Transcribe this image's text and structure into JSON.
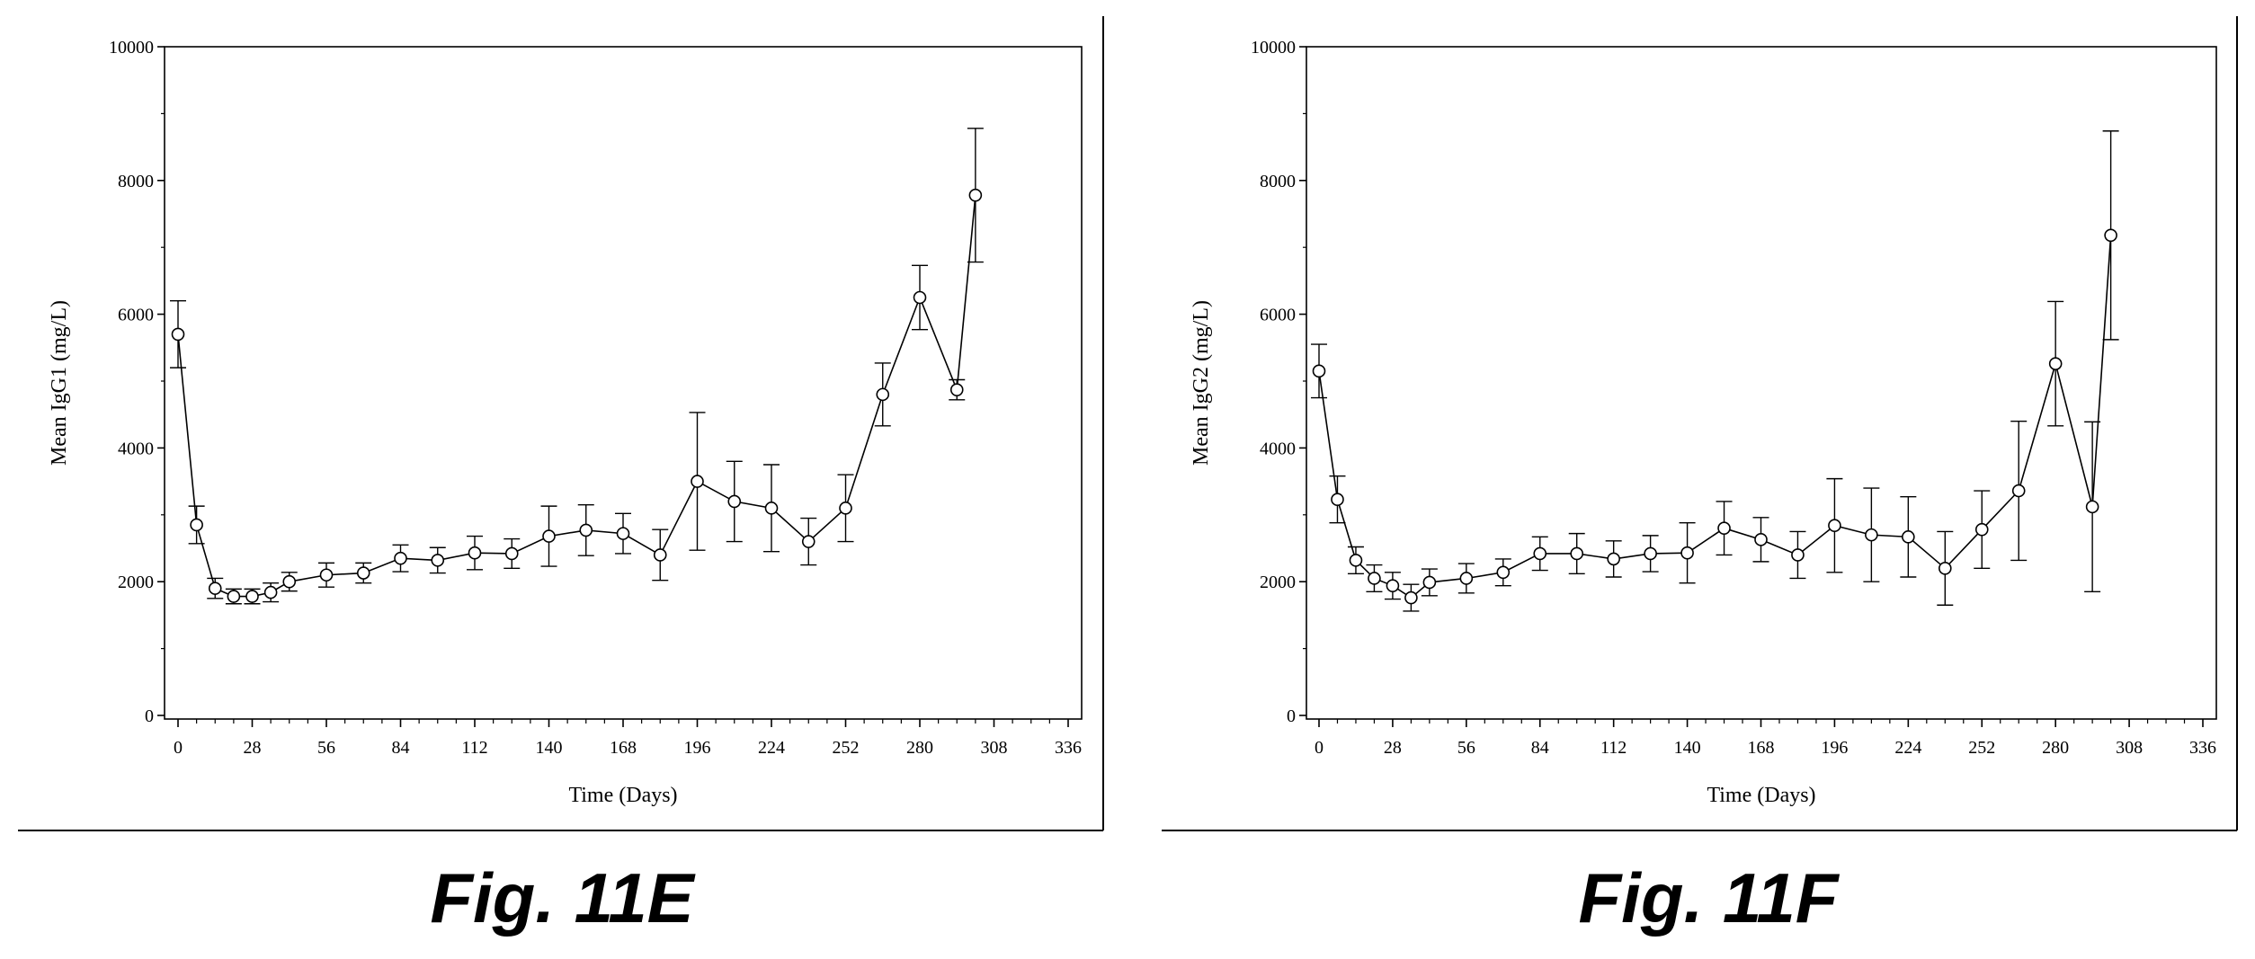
{
  "figures": [
    {
      "caption": "Fig. 11E"
    },
    {
      "caption": "Fig. 11F"
    }
  ],
  "chart_data": [
    {
      "type": "line",
      "title": "",
      "xlabel": "Time (Days)",
      "ylabel": "Mean IgG1 (mg/L)",
      "xlim": [
        0,
        336
      ],
      "ylim": [
        0,
        10000
      ],
      "xticks": [
        0,
        28,
        56,
        84,
        112,
        140,
        168,
        196,
        224,
        252,
        280,
        308,
        336
      ],
      "yticks": [
        0,
        2000,
        4000,
        6000,
        8000,
        10000
      ],
      "grid": false,
      "markers": "open-circle",
      "error_bars": true,
      "series": [
        {
          "x": [
            0,
            7,
            14,
            21,
            28,
            35,
            42,
            56,
            70,
            84,
            98,
            112,
            126,
            140,
            154,
            168,
            182,
            196,
            210,
            224,
            238,
            252,
            266,
            280,
            294,
            301
          ],
          "y": [
            5700,
            2850,
            1900,
            1780,
            1780,
            1840,
            2000,
            2100,
            2130,
            2350,
            2320,
            2430,
            2420,
            2680,
            2770,
            2720,
            2400,
            3500,
            3200,
            3100,
            2600,
            3100,
            4800,
            6250,
            4870,
            7780
          ],
          "err": [
            500,
            280,
            150,
            110,
            110,
            140,
            140,
            180,
            150,
            200,
            190,
            250,
            220,
            450,
            380,
            300,
            380,
            1030,
            600,
            650,
            350,
            500,
            470,
            480,
            150,
            1000
          ]
        }
      ]
    },
    {
      "type": "line",
      "title": "",
      "xlabel": "Time (Days)",
      "ylabel": "Mean IgG2 (mg/L)",
      "xlim": [
        0,
        336
      ],
      "ylim": [
        0,
        10000
      ],
      "xticks": [
        0,
        28,
        56,
        84,
        112,
        140,
        168,
        196,
        224,
        252,
        280,
        308,
        336
      ],
      "yticks": [
        0,
        2000,
        4000,
        6000,
        8000,
        10000
      ],
      "grid": false,
      "markers": "open-circle",
      "error_bars": true,
      "series": [
        {
          "x": [
            0,
            7,
            14,
            21,
            28,
            35,
            42,
            56,
            70,
            84,
            98,
            112,
            126,
            140,
            154,
            168,
            182,
            196,
            210,
            224,
            238,
            252,
            266,
            280,
            294,
            301
          ],
          "y": [
            5150,
            3230,
            2320,
            2050,
            1940,
            1760,
            1990,
            2050,
            2140,
            2420,
            2420,
            2340,
            2420,
            2430,
            2800,
            2630,
            2400,
            2840,
            2700,
            2670,
            2200,
            2780,
            3360,
            5260,
            3120,
            7180
          ],
          "err": [
            400,
            350,
            200,
            200,
            200,
            200,
            200,
            220,
            200,
            250,
            300,
            270,
            270,
            450,
            400,
            330,
            350,
            700,
            700,
            600,
            550,
            580,
            1040,
            930,
            1270,
            1560
          ]
        }
      ]
    }
  ]
}
